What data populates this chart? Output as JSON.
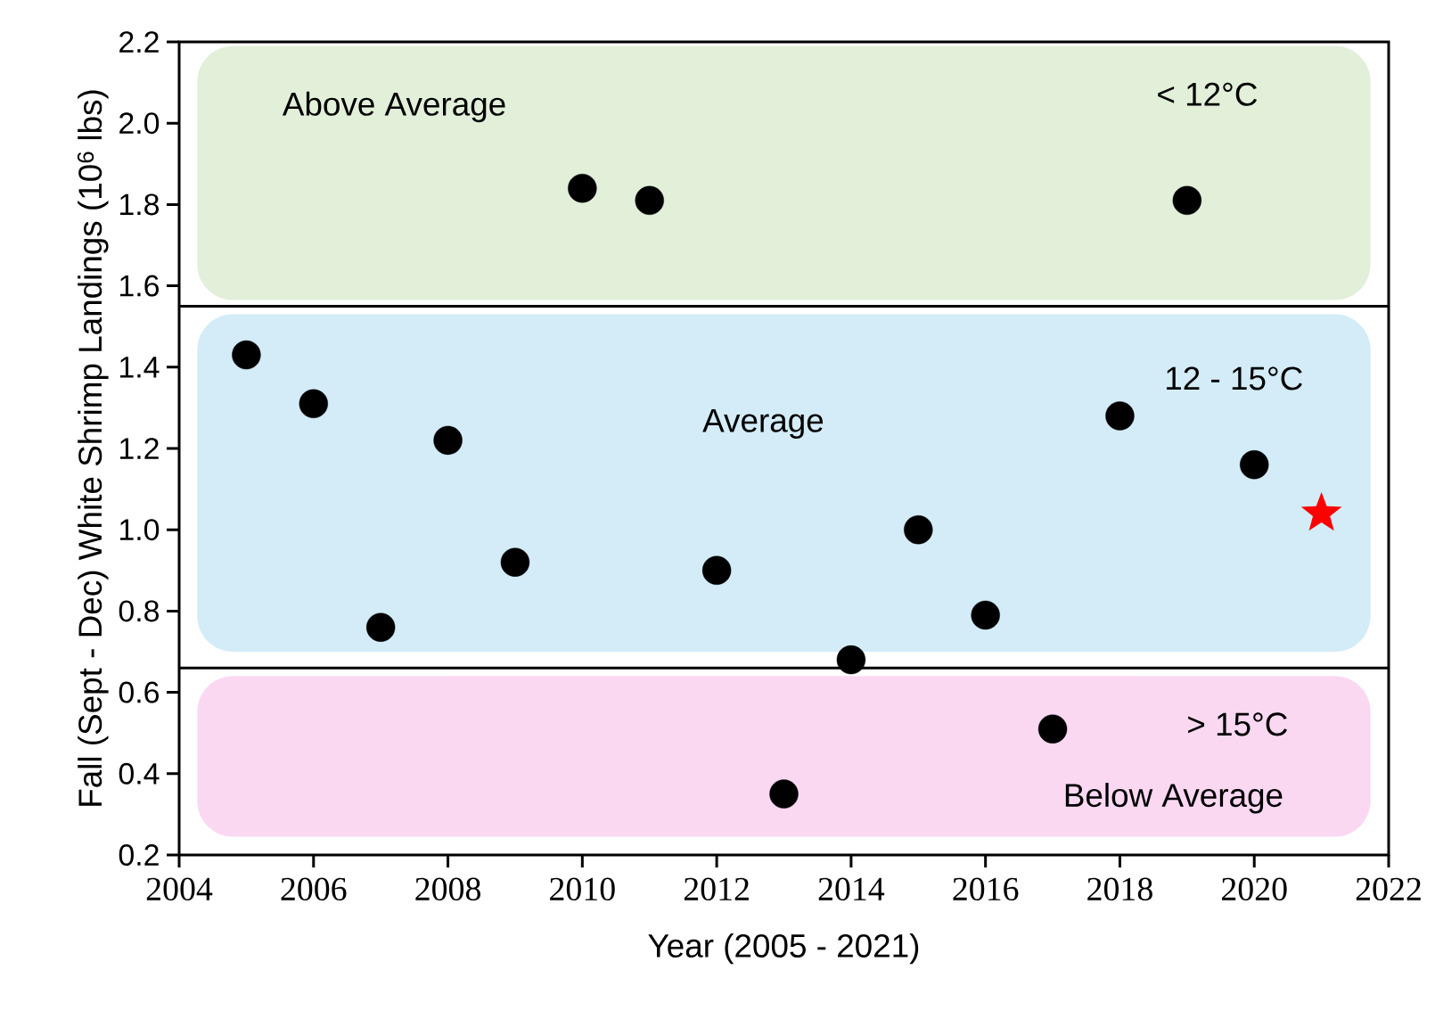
{
  "chart_data": {
    "type": "scatter",
    "xlabel": "Year (2005 - 2021)",
    "ylabel": "Fall (Sept - Dec) White Shrimp Landings (10$^{6}$ lbs)",
    "xlim": [
      2004,
      2022
    ],
    "xticks": [
      2004,
      2006,
      2008,
      2010,
      2012,
      2014,
      2016,
      2018,
      2020,
      2022
    ],
    "ylim": [
      0.2,
      2.2
    ],
    "yticks": [
      {
        "value": 0.2,
        "label": "0.2"
      },
      {
        "value": 0.4,
        "label": "0.4"
      },
      {
        "value": 0.6,
        "label": "0.6"
      },
      {
        "value": 0.8,
        "label": "0.8"
      },
      {
        "value": 1.0,
        "label": "1.0"
      },
      {
        "value": 1.2,
        "label": "1.2"
      },
      {
        "value": 1.4,
        "label": "1.4"
      },
      {
        "value": 1.6,
        "label": "1.6"
      },
      {
        "value": 1.8,
        "label": "1.8"
      },
      {
        "value": 2.0,
        "label": "2.0"
      },
      {
        "value": 2.2,
        "label": "2.2"
      }
    ],
    "grid": false,
    "series": [
      {
        "color": "#000000",
        "marker": "circle",
        "x": [
          2005,
          2006,
          2007,
          2008,
          2009,
          2010,
          2011,
          2012,
          2013,
          2014,
          2015,
          2016,
          2017,
          2018,
          2019,
          2020
        ],
        "values": [
          1.43,
          1.31,
          0.76,
          1.22,
          0.92,
          1.84,
          1.81,
          0.9,
          0.35,
          0.68,
          1.0,
          0.79,
          0.51,
          1.28,
          1.81,
          1.16
        ]
      },
      {
        "color": "#ff0000",
        "marker": "star",
        "x": [
          2021
        ],
        "values": [
          1.04
        ]
      }
    ],
    "ref_lines": [
      {
        "axis": "y",
        "value": 1.55,
        "color": "#000000"
      },
      {
        "axis": "y",
        "value": 0.66,
        "color": "#000000"
      }
    ],
    "bands": [
      {
        "axis": "y",
        "from": 1.565,
        "to": 2.19,
        "color": "#e2efd9",
        "label": "Above Average"
      },
      {
        "axis": "y",
        "from": 0.7,
        "to": 1.53,
        "color": "#d3ecf8",
        "label": "Average"
      },
      {
        "axis": "y",
        "from": 0.245,
        "to": 0.64,
        "color": "#fad8f2",
        "label": "Below Average"
      }
    ],
    "annotations": [
      "< 12°C",
      "12 - 15°C",
      "> 15°C"
    ]
  }
}
